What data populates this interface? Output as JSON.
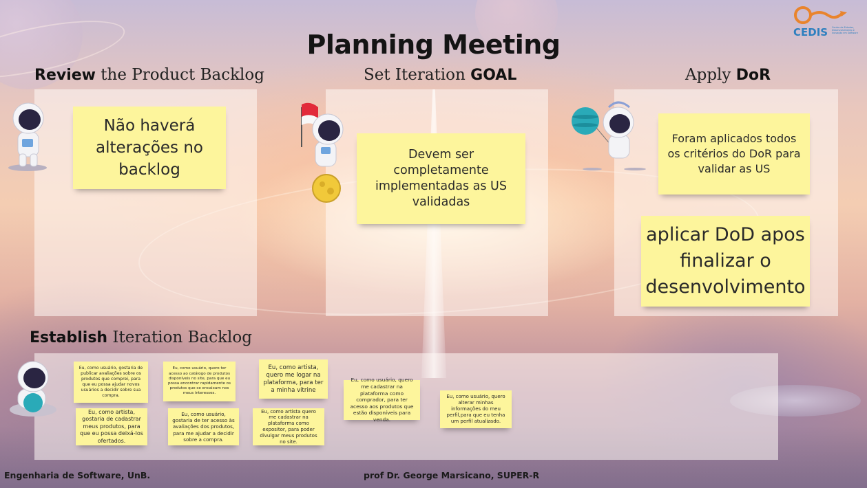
{
  "title": "Planning Meeting",
  "logo": {
    "name": "CEDIS",
    "subtitle": "Centro de Estudos, Desenvolvimento e Inovação em Software"
  },
  "sections": {
    "review": {
      "bold": "Review",
      "rest": " the Product Backlog"
    },
    "goal": {
      "rest": "Set Iteration ",
      "bold": "GOAL"
    },
    "dor": {
      "rest": "Apply ",
      "bold": "DoR"
    },
    "establish": {
      "bold": "Establish",
      "rest": " Iteration Backlog"
    }
  },
  "notes": {
    "review": "Não haverá alterações no backlog",
    "goal": "Devem ser completamente implementadas as US validadas",
    "dor": "Foram aplicados todos os critérios do DoR para validar as US",
    "dod": "aplicar DoD apos finalizar o desenvolvimento"
  },
  "backlog_items": [
    "Eu, como usuário, gostaria de publicar avaliações sobre os produtos que comprei, para que eu possa ajudar novos usuários a decidir sobre sua compra.",
    "Eu, como usuário, quero ter acesso ao catálogo de produtos disponíveis no site, para que eu possa encontrar rapidamente os produtos que se encaixam nos meus interesses.",
    "Eu, como artista, quero me logar na plataforma, para ter a minha vitrine",
    "Eu, como usuário, quero me cadastrar na plataforma como comprador, para ter acesso aos produtos que estão disponíveis para venda.",
    "Eu, como usuário, quero alterar minhas informações do meu perfil,para que eu tenha um perfil atualizado.",
    "Eu, como artista, gostaria de cadastrar meus produtos, para que eu possa deixá-los ofertados.",
    "Eu, como usuário, gostaria de ter acesso às avaliações dos produtos, para me ajudar a decidir sobre a compra.",
    "Eu, como artista quero me cadastrar na plataforma como expositor, para poder divulgar meus produtos no site."
  ],
  "footer": {
    "left": "Engenharia de Software, UnB.",
    "center": "prof Dr. George Marsicano, SUPER-R"
  },
  "colors": {
    "sticky": "#fdf59c",
    "logo": "#2d7fbf",
    "logo_accent": "#e9842c"
  },
  "icons": [
    "astronaut-icon",
    "astronaut-flag-icon",
    "astronaut-balloon-icon",
    "astronaut-sitting-icon",
    "planet-icon",
    "cedis-logo"
  ]
}
